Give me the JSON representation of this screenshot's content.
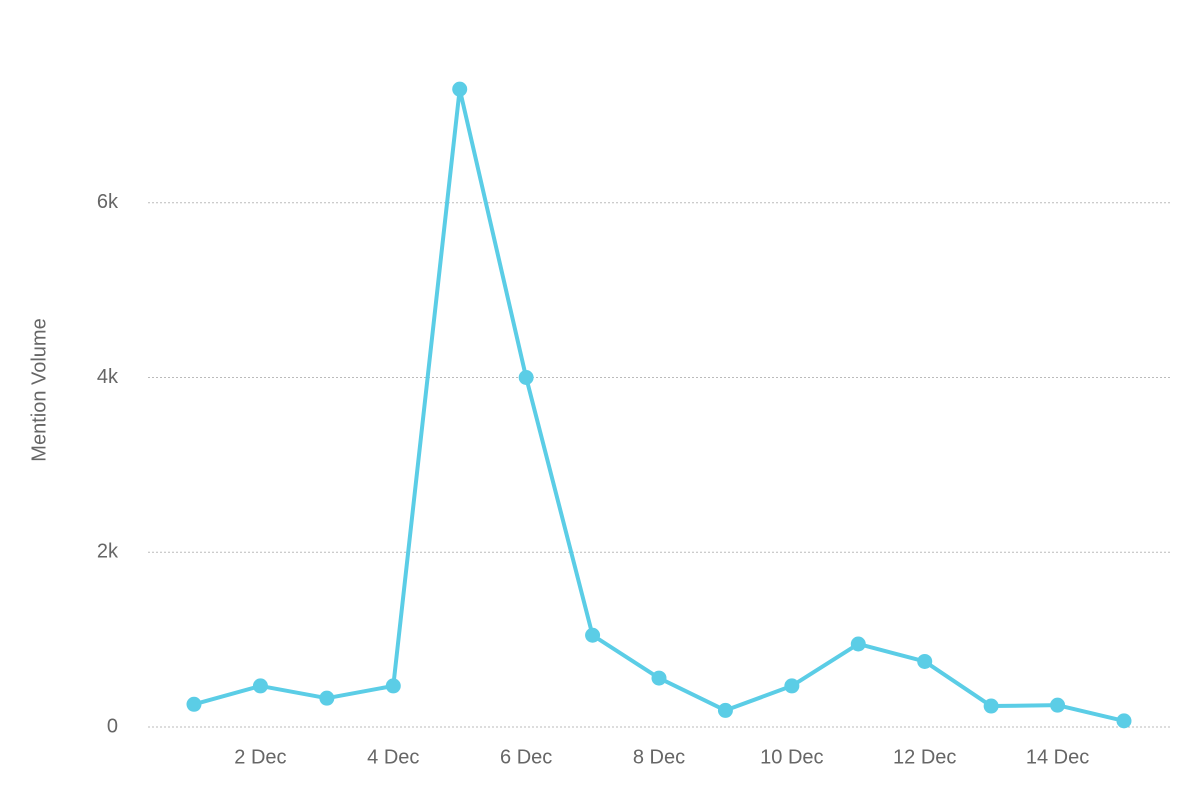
{
  "chart_data": {
    "type": "line",
    "y_label": "Mention Volume",
    "categories": [
      null,
      "2 Dec",
      null,
      "4 Dec",
      null,
      "6 Dec",
      null,
      "8 Dec",
      null,
      "10 Dec",
      null,
      "12 Dec",
      null,
      "14 Dec",
      null
    ],
    "series": [
      {
        "name": "Mention Volume",
        "color": "#5bcde6",
        "values": [
          260,
          470,
          330,
          470,
          7300,
          4000,
          1050,
          560,
          190,
          470,
          950,
          750,
          240,
          250,
          70
        ]
      }
    ],
    "ylim": [
      0,
      8000
    ],
    "yticks": [
      0,
      {
        "value": 2000,
        "label": "2k"
      },
      {
        "value": 4000,
        "label": "4k"
      },
      {
        "value": 6000,
        "label": "6k"
      }
    ],
    "grid": true
  }
}
